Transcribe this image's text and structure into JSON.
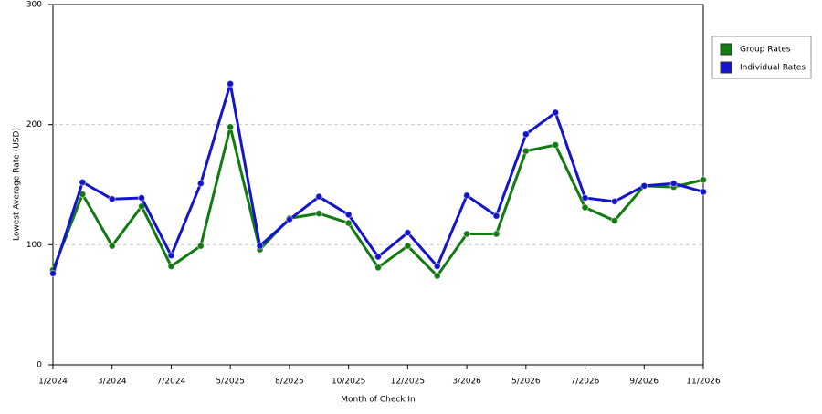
{
  "chart_data": {
    "type": "line",
    "x_label": "Month of Check In",
    "y_label": "Lowest Average Rate (USD)",
    "categories": [
      "1/2024",
      null,
      "3/2024",
      null,
      "7/2024",
      null,
      "5/2025",
      null,
      "8/2025",
      null,
      "10/2025",
      null,
      "12/2025",
      null,
      "3/2026",
      null,
      "5/2026",
      null,
      "7/2026",
      null,
      "9/2026",
      null,
      "11/2026"
    ],
    "series": [
      {
        "name": "Group Rates",
        "color": "#117a11",
        "values": [
          79,
          142,
          99,
          132,
          82,
          99,
          198,
          96,
          122,
          126,
          118,
          81,
          99,
          74,
          109,
          109,
          178,
          183,
          131,
          120,
          149,
          148,
          154
        ]
      },
      {
        "name": "Individual Rates",
        "color": "#1414cc",
        "values": [
          76,
          152,
          138,
          139,
          91,
          151,
          234,
          99,
          121,
          140,
          125,
          90,
          110,
          82,
          141,
          124,
          192,
          210,
          139,
          136,
          149,
          151,
          144
        ]
      }
    ],
    "ylim": [
      0,
      300
    ],
    "yticks": [
      0,
      100,
      200,
      300
    ],
    "grid": true,
    "legend": "right"
  }
}
